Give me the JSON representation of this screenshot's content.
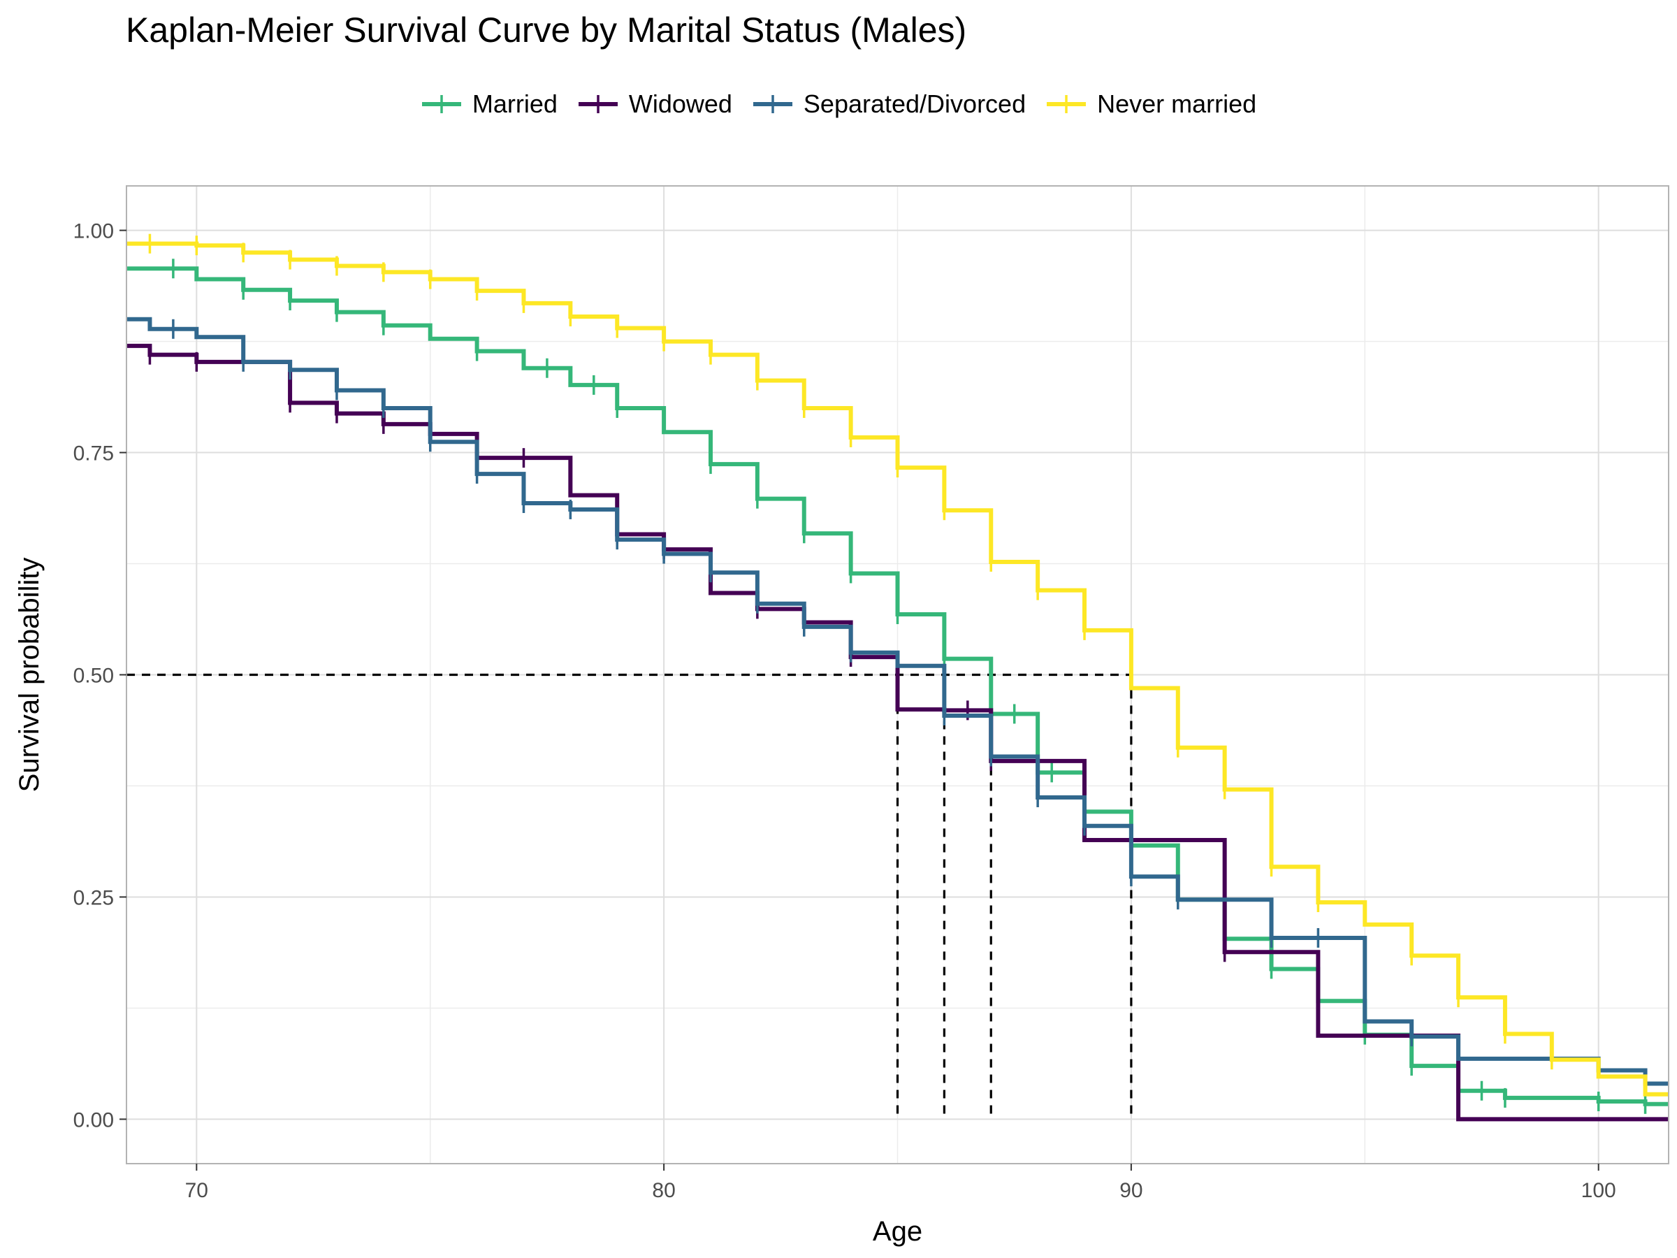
{
  "chart_data": {
    "type": "line",
    "title": "Kaplan-Meier Survival Curve by Marital Status (Males)",
    "xlabel": "Age",
    "ylabel": "Survival probability",
    "xlim": [
      68.5,
      101.5
    ],
    "ylim": [
      -0.05,
      1.05
    ],
    "xticks": [
      70,
      80,
      90,
      100
    ],
    "yticks": [
      0.0,
      0.25,
      0.5,
      0.75,
      1.0
    ],
    "xtick_labels": [
      "70",
      "80",
      "90",
      "100"
    ],
    "ytick_labels": [
      "0.00",
      "0.25",
      "0.50",
      "0.75",
      "1.00"
    ],
    "grid": true,
    "legend_position": "top",
    "censor_marks": true,
    "series": [
      {
        "name": "Married",
        "color": "#35b779",
        "x": [
          68.5,
          70,
          71,
          72,
          73,
          74,
          75,
          76,
          77,
          78,
          79,
          80,
          81,
          82,
          83,
          84,
          85,
          86,
          87,
          88,
          89,
          90,
          91,
          92,
          93,
          94,
          95,
          96,
          97,
          98,
          100,
          101
        ],
        "y": [
          0.957,
          0.945,
          0.933,
          0.921,
          0.908,
          0.893,
          0.878,
          0.864,
          0.845,
          0.826,
          0.8,
          0.773,
          0.737,
          0.698,
          0.659,
          0.614,
          0.568,
          0.518,
          0.456,
          0.39,
          0.346,
          0.308,
          0.247,
          0.203,
          0.169,
          0.133,
          0.095,
          0.06,
          0.032,
          0.024,
          0.02,
          0.017
        ],
        "censor_x": [
          69.5,
          71,
          72,
          73,
          74,
          76,
          77.5,
          78.5,
          79,
          81,
          82,
          83,
          84,
          85,
          86,
          87.5,
          88.3,
          89,
          90,
          92,
          93,
          94,
          95,
          96,
          97.5,
          98,
          100,
          101
        ]
      },
      {
        "name": "Widowed",
        "color": "#440154",
        "x": [
          68.5,
          69,
          70,
          72,
          73,
          74,
          75,
          76,
          78,
          79,
          80,
          81,
          82,
          83,
          84,
          85,
          86,
          87,
          89,
          92,
          94,
          97
        ],
        "y": [
          0.87,
          0.86,
          0.852,
          0.806,
          0.794,
          0.782,
          0.771,
          0.744,
          0.702,
          0.658,
          0.641,
          0.592,
          0.574,
          0.559,
          0.52,
          0.461,
          0.46,
          0.403,
          0.314,
          0.188,
          0.094,
          0.0
        ],
        "censor_x": [
          69,
          70,
          72,
          73,
          74,
          75,
          76,
          77,
          79,
          80,
          82,
          83,
          84,
          86.5,
          87,
          92
        ]
      },
      {
        "name": "Separated/Divorced",
        "color": "#31688e",
        "x": [
          68.5,
          69,
          70,
          71,
          72,
          73,
          74,
          75,
          76,
          77,
          78,
          79,
          80,
          81,
          82,
          83,
          84,
          85,
          86,
          87,
          88,
          89,
          90,
          91,
          93,
          95,
          96,
          97,
          100,
          101
        ],
        "y": [
          0.9,
          0.889,
          0.88,
          0.852,
          0.843,
          0.82,
          0.8,
          0.762,
          0.726,
          0.693,
          0.686,
          0.652,
          0.636,
          0.615,
          0.58,
          0.554,
          0.525,
          0.51,
          0.454,
          0.408,
          0.362,
          0.33,
          0.273,
          0.247,
          0.204,
          0.11,
          0.093,
          0.068,
          0.055,
          0.04
        ],
        "censor_x": [
          69.5,
          71,
          72,
          73,
          74,
          75,
          76,
          77,
          78,
          79,
          80,
          81,
          82,
          83,
          84,
          86,
          87,
          88,
          89,
          90,
          91,
          93,
          94,
          96,
          101
        ]
      },
      {
        "name": "Never married",
        "color": "#fde725",
        "x": [
          68.5,
          70,
          71,
          72,
          73,
          74,
          75,
          76,
          77,
          78,
          79,
          80,
          81,
          82,
          83,
          84,
          85,
          86,
          87,
          88,
          89,
          90,
          91,
          92,
          93,
          94,
          95,
          96,
          97,
          98,
          99,
          100,
          101
        ],
        "y": [
          0.985,
          0.983,
          0.975,
          0.967,
          0.96,
          0.953,
          0.945,
          0.932,
          0.918,
          0.903,
          0.89,
          0.875,
          0.86,
          0.831,
          0.8,
          0.767,
          0.733,
          0.685,
          0.627,
          0.595,
          0.55,
          0.485,
          0.418,
          0.371,
          0.284,
          0.244,
          0.219,
          0.184,
          0.137,
          0.096,
          0.067,
          0.048,
          0.028
        ],
        "censor_x": [
          69,
          70,
          71,
          72,
          73,
          74,
          75,
          76,
          77,
          78,
          79,
          80,
          81,
          82,
          83,
          84,
          85,
          86,
          87,
          88,
          89,
          91,
          92,
          93,
          94,
          96,
          97,
          98,
          99
        ]
      }
    ],
    "median_reference": {
      "y": 0.5,
      "x_values": [
        85,
        86,
        87,
        90
      ],
      "color": "#000000"
    }
  }
}
